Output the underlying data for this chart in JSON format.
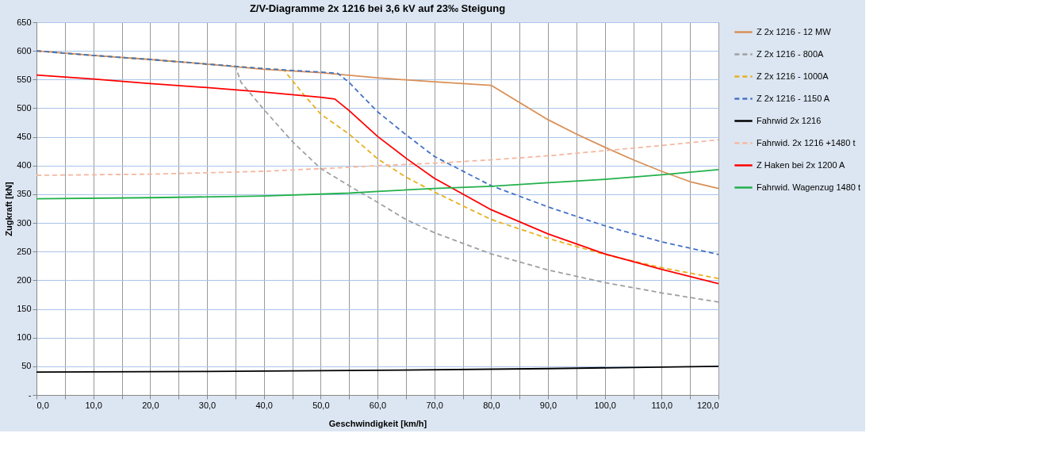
{
  "chart_data": {
    "type": "line",
    "title": "Z/V-Diagramme  2x 1216 bei 3,6 kV auf 23‰ Steigung",
    "xlabel": "Geschwindigkeit [km/h]",
    "ylabel": "Zugkraft [kN]",
    "xlim": [
      0,
      120
    ],
    "ylim": [
      0,
      650
    ],
    "xticks": [
      {
        "value": 0,
        "label": "0,0"
      },
      {
        "value": 5,
        "label": null
      },
      {
        "value": 10,
        "label": "10,0"
      },
      {
        "value": 15,
        "label": null
      },
      {
        "value": 20,
        "label": "20,0"
      },
      {
        "value": 25,
        "label": null
      },
      {
        "value": 30,
        "label": "30,0"
      },
      {
        "value": 35,
        "label": null
      },
      {
        "value": 40,
        "label": "40,0"
      },
      {
        "value": 45,
        "label": null
      },
      {
        "value": 50,
        "label": "50,0"
      },
      {
        "value": 55,
        "label": null
      },
      {
        "value": 60,
        "label": "60,0"
      },
      {
        "value": 65,
        "label": null
      },
      {
        "value": 70,
        "label": "70,0"
      },
      {
        "value": 75,
        "label": null
      },
      {
        "value": 80,
        "label": "80,0"
      },
      {
        "value": 85,
        "label": null
      },
      {
        "value": 90,
        "label": "90,0"
      },
      {
        "value": 95,
        "label": null
      },
      {
        "value": 100,
        "label": "100,0"
      },
      {
        "value": 105,
        "label": null
      },
      {
        "value": 110,
        "label": "110,0"
      },
      {
        "value": 115,
        "label": null
      },
      {
        "value": 120,
        "label": "120,0"
      }
    ],
    "yticks": [
      {
        "value": 0,
        "label": "-"
      },
      50,
      100,
      150,
      200,
      250,
      300,
      350,
      400,
      450,
      500,
      550,
      600,
      650
    ],
    "grid": true,
    "legend": "right",
    "marker": "none",
    "series": [
      {
        "name": "Z 2x 1216 - 12 MW",
        "color": "#d99058",
        "line_style": "solid",
        "x": [
          0,
          10,
          20,
          30,
          40,
          50,
          60,
          70,
          80,
          85,
          90,
          95,
          100,
          105,
          110,
          115,
          120
        ],
        "values": [
          600,
          592,
          585,
          577,
          568,
          562,
          553,
          546,
          540,
          510,
          480,
          455,
          432,
          410,
          390,
          372,
          360
        ]
      },
      {
        "name": "Z  2x 1216 - 800A",
        "color": "#a0a0a0",
        "line_style": "dashed",
        "x": [
          0,
          10,
          20,
          30,
          35,
          36,
          40,
          45,
          50,
          55,
          60,
          65,
          70,
          80,
          90,
          100,
          110,
          120
        ],
        "values": [
          600,
          592,
          585,
          577,
          573,
          545,
          498,
          442,
          395,
          365,
          336,
          306,
          283,
          246,
          218,
          196,
          178,
          162
        ]
      },
      {
        "name": "Z 2x 1216 -  1000A",
        "color": "#e8b020",
        "line_style": "dashed",
        "x": [
          0,
          10,
          20,
          30,
          40,
          43.5,
          47,
          50,
          55,
          60,
          65,
          70,
          80,
          90,
          100,
          110,
          120
        ],
        "values": [
          600,
          592,
          585,
          577,
          569,
          567,
          524,
          490,
          455,
          412,
          380,
          354,
          306,
          273,
          245,
          222,
          203
        ]
      },
      {
        "name": "Z 2x 1216 - 1150 A",
        "color": "#4472c4",
        "line_style": "dashed",
        "x": [
          0,
          10,
          20,
          30,
          40,
          50,
          53,
          55,
          60,
          65,
          70,
          80,
          90,
          100,
          110,
          120
        ],
        "values": [
          600,
          592,
          585,
          577,
          569,
          563,
          561,
          545,
          494,
          454,
          416,
          365,
          328,
          295,
          267,
          245
        ]
      },
      {
        "name": "Fahrwid 2x 1216",
        "color": "#000000",
        "line_style": "solid",
        "x": [
          0,
          30,
          60,
          90,
          120
        ],
        "values": [
          40,
          41,
          43,
          46,
          50
        ]
      },
      {
        "name": "Fahrwid. 2x 1216 +1480 t",
        "color": "#f4b8a0",
        "line_style": "dashed",
        "x": [
          0,
          20,
          40,
          55,
          60,
          70,
          80,
          90,
          100,
          110,
          120
        ],
        "values": [
          383,
          385,
          390,
          397,
          400,
          404,
          410,
          417,
          426,
          435,
          445
        ]
      },
      {
        "name": "Z Haken bei 2x 1200 A",
        "color": "#ff0000",
        "line_style": "solid",
        "x": [
          0,
          10,
          20,
          30,
          40,
          50,
          52.5,
          55,
          60,
          65,
          70,
          80,
          90,
          100,
          110,
          120
        ],
        "values": [
          558,
          551,
          543,
          536,
          528,
          519,
          516,
          496,
          451,
          413,
          378,
          323,
          281,
          246,
          219,
          194
        ]
      },
      {
        "name": "Fahrwid. Wagenzug 1480 t",
        "color": "#22b14c",
        "line_style": "solid",
        "x": [
          0,
          20,
          40,
          55,
          60,
          70,
          80,
          90,
          100,
          110,
          120
        ],
        "values": [
          342,
          344,
          347,
          352,
          355,
          360,
          364,
          370,
          376,
          384,
          393
        ]
      }
    ]
  }
}
